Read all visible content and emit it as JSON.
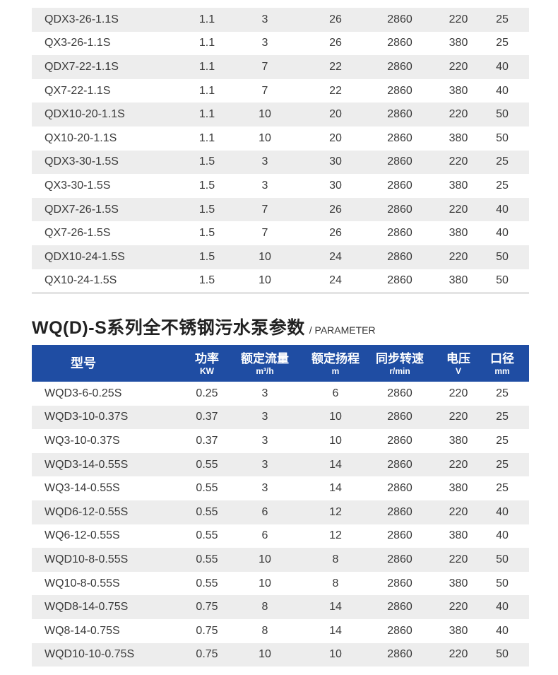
{
  "top_table": {
    "rows": [
      [
        "QDX3-26-1.1S",
        "1.1",
        "3",
        "26",
        "2860",
        "220",
        "25"
      ],
      [
        "QX3-26-1.1S",
        "1.1",
        "3",
        "26",
        "2860",
        "380",
        "25"
      ],
      [
        "QDX7-22-1.1S",
        "1.1",
        "7",
        "22",
        "2860",
        "220",
        "40"
      ],
      [
        "QX7-22-1.1S",
        "1.1",
        "7",
        "22",
        "2860",
        "380",
        "40"
      ],
      [
        "QDX10-20-1.1S",
        "1.1",
        "10",
        "20",
        "2860",
        "220",
        "50"
      ],
      [
        "QX10-20-1.1S",
        "1.1",
        "10",
        "20",
        "2860",
        "380",
        "50"
      ],
      [
        "QDX3-30-1.5S",
        "1.5",
        "3",
        "30",
        "2860",
        "220",
        "25"
      ],
      [
        "QX3-30-1.5S",
        "1.5",
        "3",
        "30",
        "2860",
        "380",
        "25"
      ],
      [
        "QDX7-26-1.5S",
        "1.5",
        "7",
        "26",
        "2860",
        "220",
        "40"
      ],
      [
        "QX7-26-1.5S",
        "1.5",
        "7",
        "26",
        "2860",
        "380",
        "40"
      ],
      [
        "QDX10-24-1.5S",
        "1.5",
        "10",
        "24",
        "2860",
        "220",
        "50"
      ],
      [
        "QX10-24-1.5S",
        "1.5",
        "10",
        "24",
        "2860",
        "380",
        "50"
      ]
    ]
  },
  "section": {
    "title": "WQ(D)-S系列全不锈钢污水泵参数",
    "subtitle": "/ PARAMETER"
  },
  "wq_table": {
    "header": {
      "model": "型号",
      "power": "功率",
      "power_unit": "KW",
      "flow": "额定流量",
      "flow_unit": "m³/h",
      "head": "额定扬程",
      "head_unit": "m",
      "speed": "同步转速",
      "speed_unit": "r/min",
      "voltage": "电压",
      "voltage_unit": "V",
      "caliber": "口径",
      "caliber_unit": "mm"
    },
    "rows": [
      [
        "WQD3-6-0.25S",
        "0.25",
        "3",
        "6",
        "2860",
        "220",
        "25"
      ],
      [
        "WQD3-10-0.37S",
        "0.37",
        "3",
        "10",
        "2860",
        "220",
        "25"
      ],
      [
        "WQ3-10-0.37S",
        "0.37",
        "3",
        "10",
        "2860",
        "380",
        "25"
      ],
      [
        "WQD3-14-0.55S",
        "0.55",
        "3",
        "14",
        "2860",
        "220",
        "25"
      ],
      [
        "WQ3-14-0.55S",
        "0.55",
        "3",
        "14",
        "2860",
        "380",
        "25"
      ],
      [
        "WQD6-12-0.55S",
        "0.55",
        "6",
        "12",
        "2860",
        "220",
        "40"
      ],
      [
        "WQ6-12-0.55S",
        "0.55",
        "6",
        "12",
        "2860",
        "380",
        "40"
      ],
      [
        "WQD10-8-0.55S",
        "0.55",
        "10",
        "8",
        "2860",
        "220",
        "50"
      ],
      [
        "WQ10-8-0.55S",
        "0.55",
        "10",
        "8",
        "2860",
        "380",
        "50"
      ],
      [
        "WQD8-14-0.75S",
        "0.75",
        "8",
        "14",
        "2860",
        "220",
        "40"
      ],
      [
        "WQ8-14-0.75S",
        "0.75",
        "8",
        "14",
        "2860",
        "380",
        "40"
      ],
      [
        "WQD10-10-0.75S",
        "0.75",
        "10",
        "10",
        "2860",
        "220",
        "50"
      ]
    ]
  }
}
